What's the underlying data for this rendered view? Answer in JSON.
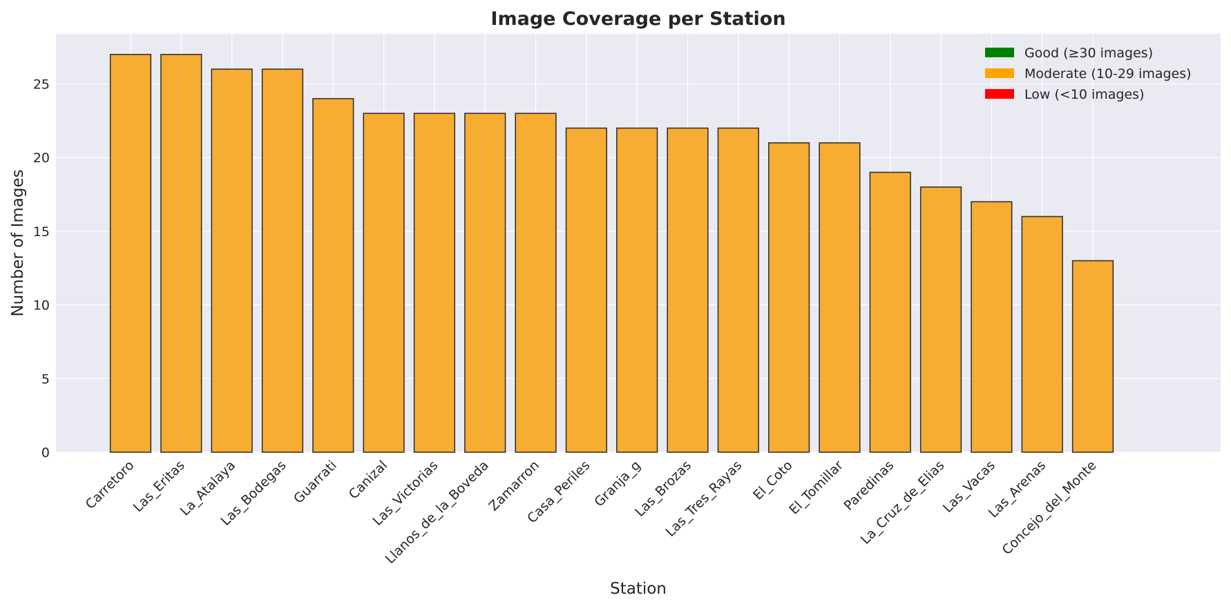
{
  "chart_data": {
    "type": "bar",
    "title": "Image Coverage per Station",
    "xlabel": "Station",
    "ylabel": "Number of Images",
    "ylim": [
      0,
      28.4
    ],
    "yticks": [
      0,
      5,
      10,
      15,
      20,
      25
    ],
    "grid": true,
    "legend_position": "top-right",
    "bar_color": "#F7AC32",
    "bar_edge_color": "#333333",
    "background_color": "#EAEAF2",
    "categories": [
      "Carretoro",
      "Las_Eritas",
      "La_Atalaya",
      "Las_Bodegas",
      "Guarrati",
      "Canizal",
      "Las_Victorias",
      "Llanos_de_la_Boveda",
      "Zamarron",
      "Casa_Periles",
      "Granja_g",
      "Las_Brozas",
      "Las_Tres_Rayas",
      "El_Coto",
      "El_Tomillar",
      "Paredinas",
      "La_Cruz_de_Elias",
      "Las_Vacas",
      "Las_Arenas",
      "Concejo_del_Monte"
    ],
    "values": [
      27,
      27,
      26,
      26,
      24,
      23,
      23,
      23,
      23,
      22,
      22,
      22,
      22,
      21,
      21,
      19,
      18,
      17,
      16,
      13
    ],
    "legend": [
      {
        "label": "Good (≥30 images)",
        "color": "#008000"
      },
      {
        "label": "Moderate (10-29 images)",
        "color": "#FFA500"
      },
      {
        "label": "Low (<10 images)",
        "color": "#FF0000"
      }
    ]
  }
}
